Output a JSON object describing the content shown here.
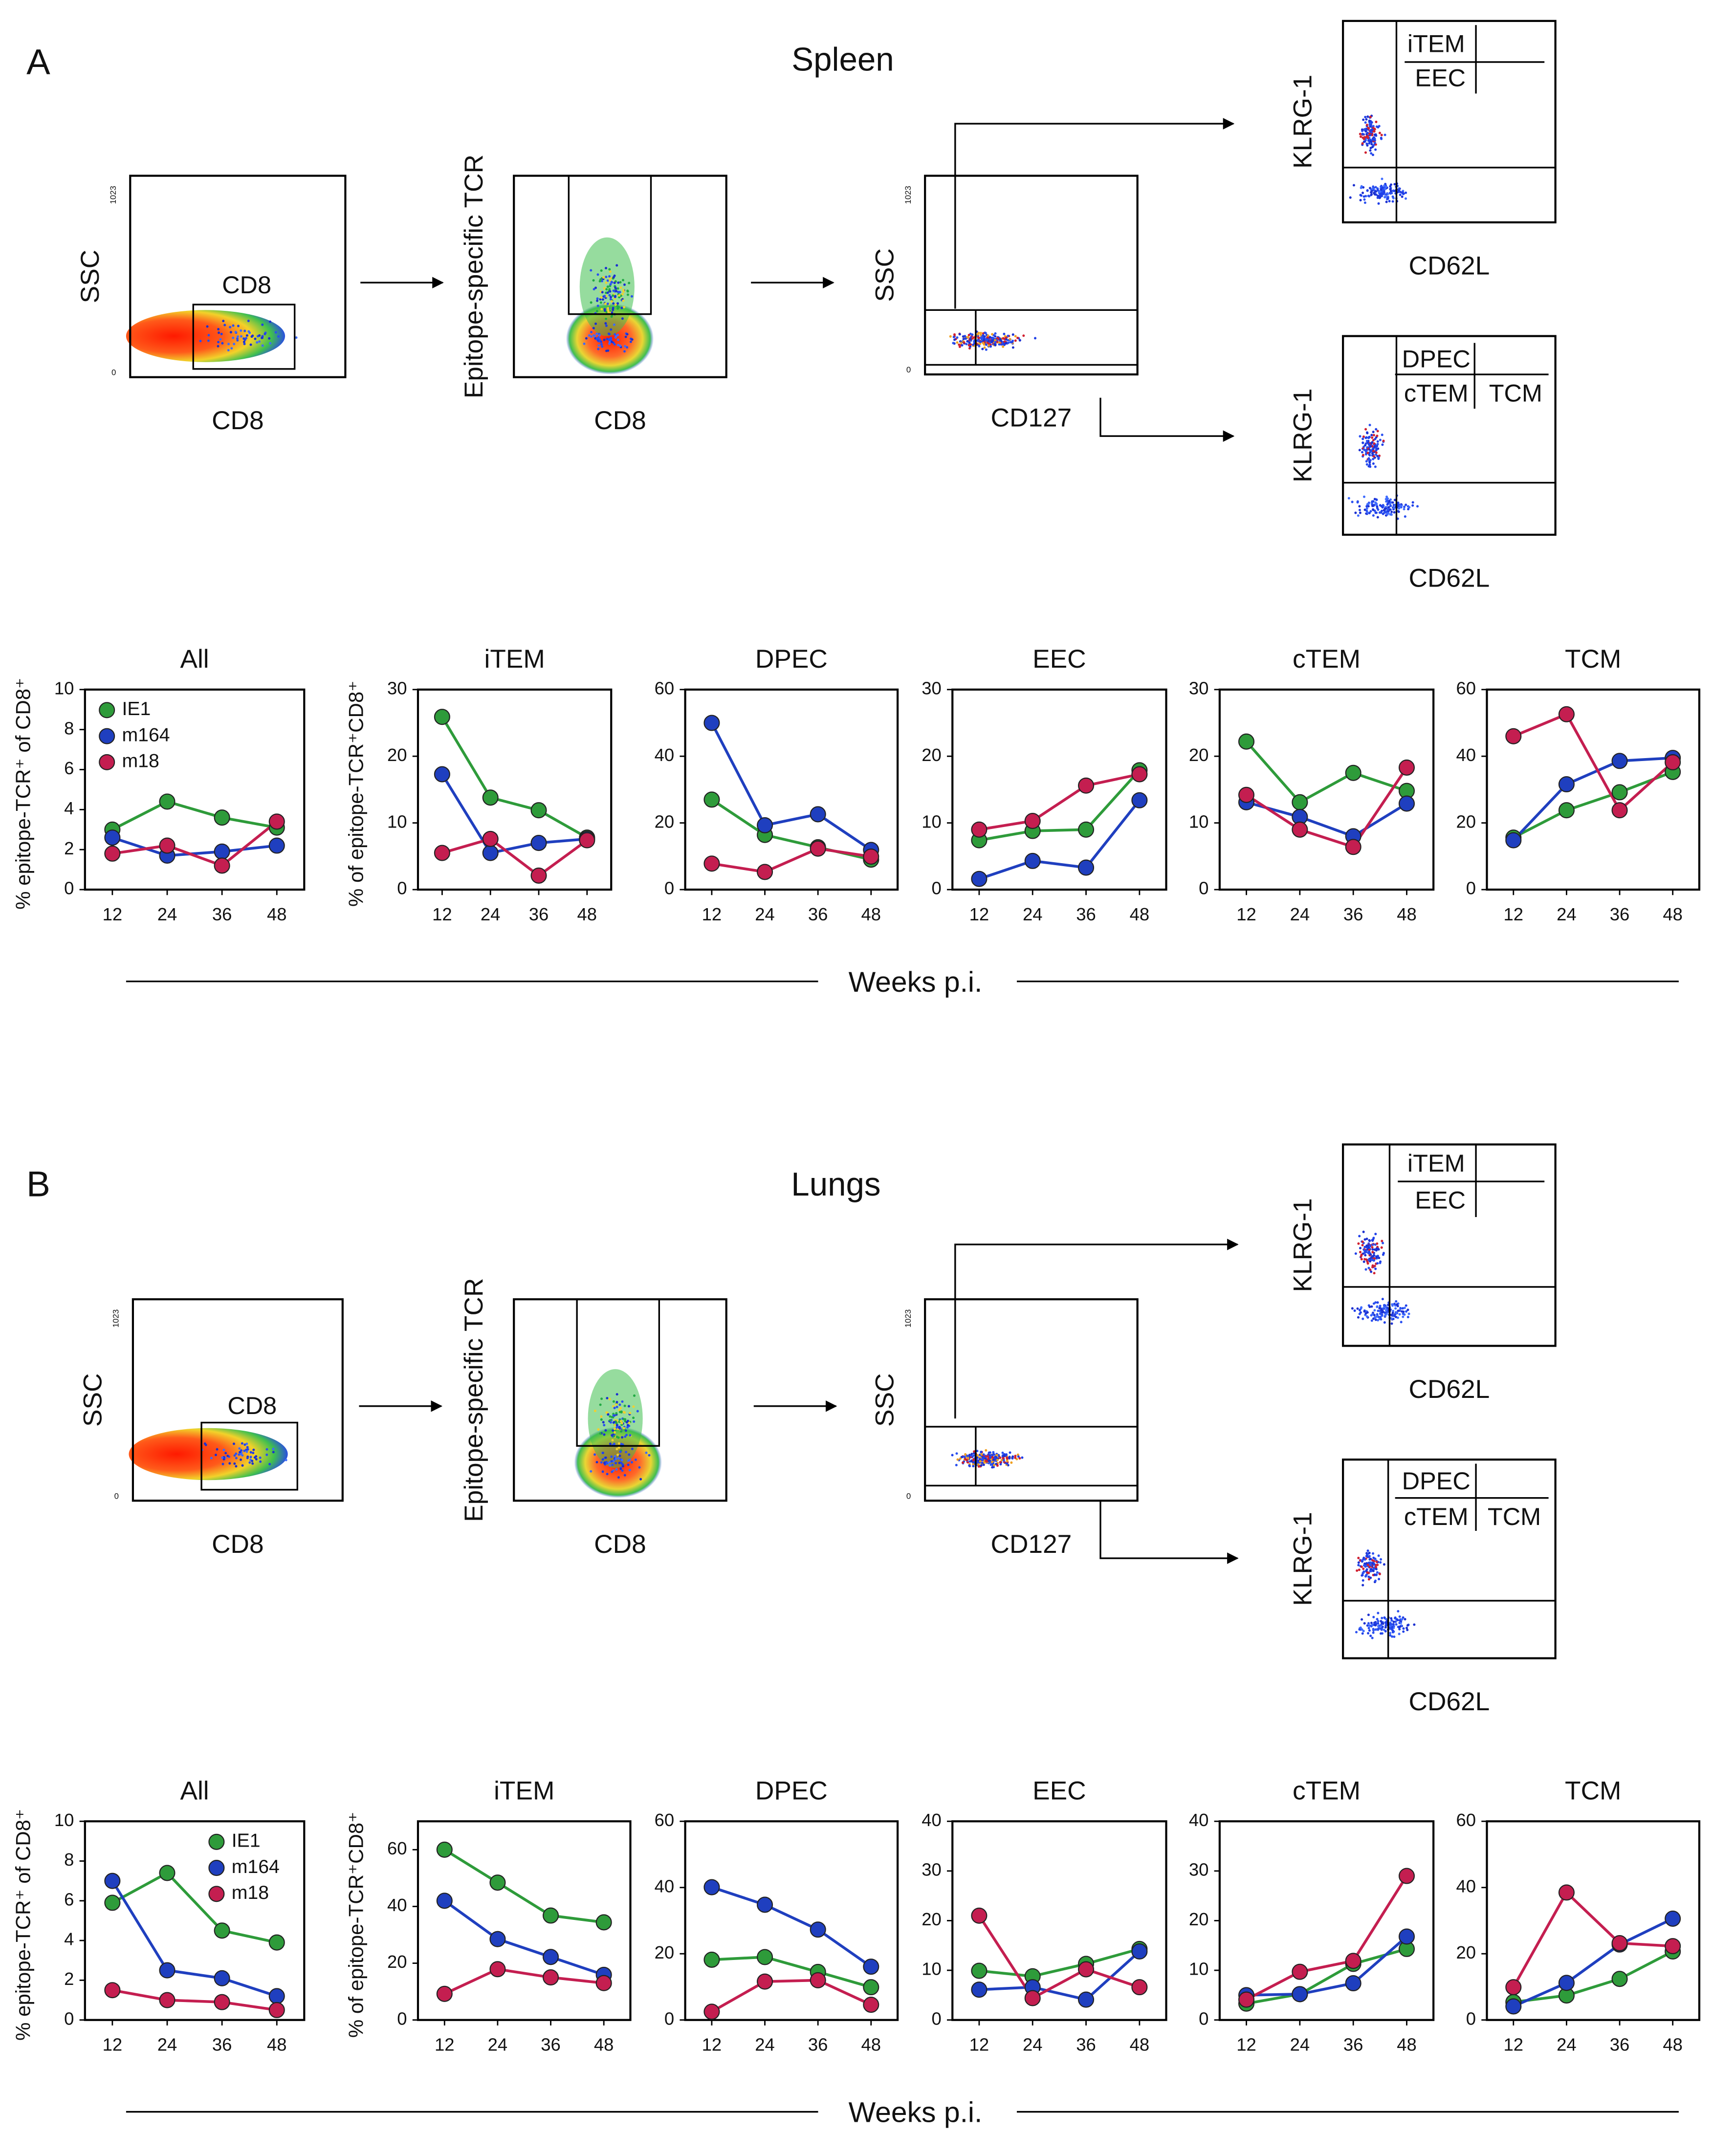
{
  "figure": {
    "sections": [
      {
        "letter": "A",
        "tissue": "Spleen",
        "xlabel": "Weeks p.i.",
        "plots": [
          {
            "ylabel": "SSC",
            "xlabel": "CD8",
            "gates": [
              "CD8"
            ],
            "ticks": [
              "1023",
              "0"
            ]
          },
          {
            "ylabel": "Epitope-specific TCR",
            "xlabel": "CD8"
          },
          {
            "ylabel": "SSC",
            "xlabel": "CD127",
            "ticks": [
              "1023",
              "0"
            ]
          },
          {
            "ylabel": "KLRG-1",
            "xlabel": "CD62L",
            "gates": [
              "iTEM",
              "EEC"
            ]
          },
          {
            "ylabel": "KLRG-1",
            "xlabel": "CD62L",
            "gates": [
              "DPEC",
              "cTEM",
              "TCM"
            ]
          }
        ]
      },
      {
        "letter": "B",
        "tissue": "Lungs",
        "xlabel": "Weeks p.i.",
        "plots": [
          {
            "ylabel": "SSC",
            "xlabel": "CD8",
            "gates": [
              "CD8"
            ],
            "ticks": [
              "1023",
              "0"
            ]
          },
          {
            "ylabel": "Epitope-specific TCR",
            "xlabel": "CD8"
          },
          {
            "ylabel": "SSC",
            "xlabel": "CD127",
            "ticks": [
              "1023",
              "0"
            ]
          },
          {
            "ylabel": "KLRG-1",
            "xlabel": "CD62L",
            "gates": [
              "iTEM",
              "EEC"
            ]
          },
          {
            "ylabel": "KLRG-1",
            "xlabel": "CD62L",
            "gates": [
              "DPEC",
              "cTEM",
              "TCM"
            ]
          }
        ]
      }
    ]
  },
  "chart_data": [
    {
      "type": "line",
      "title": "All",
      "ylabel": "% epitope-TCR⁺ of CD8⁺",
      "x": [
        12,
        24,
        36,
        48
      ],
      "xlim": [
        6,
        54
      ],
      "xticks": [
        12,
        24,
        36,
        48
      ],
      "ylim": [
        0,
        10
      ],
      "yticks": [
        0,
        2,
        4,
        6,
        8,
        10
      ],
      "legend": "upper left",
      "series": [
        {
          "name": "IE1",
          "color": "#2e9b3a",
          "values": [
            3.0,
            4.4,
            3.6,
            3.1
          ]
        },
        {
          "name": "m164",
          "color": "#1f3fbf",
          "values": [
            2.6,
            1.7,
            1.9,
            2.2
          ]
        },
        {
          "name": "m18",
          "color": "#c41e50",
          "values": [
            1.8,
            2.2,
            1.2,
            3.4
          ]
        }
      ]
    },
    {
      "type": "line",
      "title": "iTEM",
      "ylabel": "% of epitope-TCR⁺CD8⁺",
      "x": [
        12,
        24,
        36,
        48
      ],
      "xlim": [
        6,
        54
      ],
      "xticks": [
        12,
        24,
        36,
        48
      ],
      "ylim": [
        0,
        30
      ],
      "yticks": [
        0,
        10,
        20,
        30
      ],
      "series": [
        {
          "color": "#2e9b3a",
          "values": [
            25.9,
            13.8,
            11.9,
            7.8
          ]
        },
        {
          "color": "#1f3fbf",
          "values": [
            17.3,
            5.5,
            7.0,
            7.6
          ]
        },
        {
          "color": "#c41e50",
          "values": [
            5.5,
            7.6,
            2.1,
            7.4
          ]
        }
      ]
    },
    {
      "type": "line",
      "title": "DPEC",
      "x": [
        12,
        24,
        36,
        48
      ],
      "xlim": [
        6,
        54
      ],
      "xticks": [
        12,
        24,
        36,
        48
      ],
      "ylim": [
        0,
        60
      ],
      "yticks": [
        0,
        20,
        40,
        60
      ],
      "series": [
        {
          "color": "#2e9b3a",
          "values": [
            27,
            16.4,
            12.7,
            9
          ]
        },
        {
          "color": "#1f3fbf",
          "values": [
            50,
            19.3,
            22.6,
            11.9
          ]
        },
        {
          "color": "#c41e50",
          "values": [
            7.8,
            5.3,
            12.3,
            9.9
          ]
        }
      ]
    },
    {
      "type": "line",
      "title": "EEC",
      "x": [
        12,
        24,
        36,
        48
      ],
      "xlim": [
        6,
        54
      ],
      "xticks": [
        12,
        24,
        36,
        48
      ],
      "ylim": [
        0,
        30
      ],
      "yticks": [
        0,
        10,
        20,
        30
      ],
      "series": [
        {
          "color": "#2e9b3a",
          "values": [
            7.4,
            8.8,
            9.0,
            17.9
          ]
        },
        {
          "color": "#1f3fbf",
          "values": [
            1.6,
            4.3,
            3.3,
            13.4
          ]
        },
        {
          "color": "#c41e50",
          "values": [
            9.0,
            10.3,
            15.6,
            17.3
          ]
        }
      ]
    },
    {
      "type": "line",
      "title": "cTEM",
      "x": [
        12,
        24,
        36,
        48
      ],
      "xlim": [
        6,
        54
      ],
      "xticks": [
        12,
        24,
        36,
        48
      ],
      "ylim": [
        0,
        30
      ],
      "yticks": [
        0,
        10,
        20,
        30
      ],
      "series": [
        {
          "color": "#2e9b3a",
          "values": [
            22.2,
            13.1,
            17.5,
            14.8
          ]
        },
        {
          "color": "#1f3fbf",
          "values": [
            13.1,
            10.9,
            8.0,
            12.9
          ]
        },
        {
          "color": "#c41e50",
          "values": [
            14.2,
            9.0,
            6.4,
            18.3
          ]
        }
      ]
    },
    {
      "type": "line",
      "title": "TCM",
      "x": [
        12,
        24,
        36,
        48
      ],
      "xlim": [
        6,
        54
      ],
      "xticks": [
        12,
        24,
        36,
        48
      ],
      "ylim": [
        0,
        60
      ],
      "yticks": [
        0,
        20,
        40,
        60
      ],
      "series": [
        {
          "color": "#2e9b3a",
          "values": [
            15.6,
            23.8,
            29.2,
            35.3
          ]
        },
        {
          "color": "#1f3fbf",
          "values": [
            14.8,
            31.6,
            38.6,
            39.5
          ]
        },
        {
          "color": "#c41e50",
          "values": [
            46,
            52.6,
            23.8,
            38.2
          ]
        }
      ]
    },
    {
      "type": "line",
      "title": "All",
      "ylabel": "% epitope-TCR⁺ of CD8⁺",
      "x": [
        12,
        24,
        36,
        48
      ],
      "xlim": [
        6,
        54
      ],
      "xticks": [
        12,
        24,
        36,
        48
      ],
      "ylim": [
        0,
        10
      ],
      "yticks": [
        0,
        2,
        4,
        6,
        8,
        10
      ],
      "legend": "upper right",
      "series": [
        {
          "name": "IE1",
          "color": "#2e9b3a",
          "values": [
            5.9,
            7.4,
            4.5,
            3.9
          ]
        },
        {
          "name": "m164",
          "color": "#1f3fbf",
          "values": [
            7.0,
            2.5,
            2.1,
            1.2
          ]
        },
        {
          "name": "m18",
          "color": "#c41e50",
          "values": [
            1.5,
            1.0,
            0.9,
            0.5
          ]
        }
      ]
    },
    {
      "type": "line",
      "title": "iTEM",
      "ylabel": "% of epitope-TCR⁺CD8⁺",
      "x": [
        12,
        24,
        36,
        48
      ],
      "xlim": [
        6,
        54
      ],
      "xticks": [
        12,
        24,
        36,
        48
      ],
      "ylim": [
        0,
        70
      ],
      "yticks": [
        0,
        20,
        40,
        60
      ],
      "series": [
        {
          "color": "#2e9b3a",
          "values": [
            60,
            48.4,
            36.8,
            34.4
          ]
        },
        {
          "color": "#1f3fbf",
          "values": [
            42,
            28.5,
            22.2,
            15.9
          ]
        },
        {
          "color": "#c41e50",
          "values": [
            9.2,
            17.9,
            15,
            13
          ]
        }
      ]
    },
    {
      "type": "line",
      "title": "DPEC",
      "x": [
        12,
        24,
        36,
        48
      ],
      "xlim": [
        6,
        54
      ],
      "xticks": [
        12,
        24,
        36,
        48
      ],
      "ylim": [
        0,
        60
      ],
      "yticks": [
        0,
        20,
        40,
        60
      ],
      "series": [
        {
          "color": "#2e9b3a",
          "values": [
            18.2,
            19,
            14.5,
            9.9
          ]
        },
        {
          "color": "#1f3fbf",
          "values": [
            40.1,
            34.8,
            27.3,
            16.1
          ]
        },
        {
          "color": "#c41e50",
          "values": [
            2.5,
            11.6,
            12,
            4.6
          ]
        }
      ]
    },
    {
      "type": "line",
      "title": "EEC",
      "x": [
        12,
        24,
        36,
        48
      ],
      "xlim": [
        6,
        54
      ],
      "xticks": [
        12,
        24,
        36,
        48
      ],
      "ylim": [
        0,
        40
      ],
      "yticks": [
        0,
        10,
        20,
        30,
        40
      ],
      "series": [
        {
          "color": "#2e9b3a",
          "values": [
            9.9,
            8.8,
            11.3,
            14.3
          ]
        },
        {
          "color": "#1f3fbf",
          "values": [
            6.1,
            6.6,
            4.1,
            13.8
          ]
        },
        {
          "color": "#c41e50",
          "values": [
            21,
            4.4,
            10.2,
            6.6
          ]
        }
      ]
    },
    {
      "type": "line",
      "title": "cTEM",
      "x": [
        12,
        24,
        36,
        48
      ],
      "xlim": [
        6,
        54
      ],
      "xticks": [
        12,
        24,
        36,
        48
      ],
      "ylim": [
        0,
        40
      ],
      "yticks": [
        0,
        10,
        20,
        30,
        40
      ],
      "series": [
        {
          "color": "#2e9b3a",
          "values": [
            3.3,
            5.2,
            11.3,
            14.3
          ]
        },
        {
          "color": "#1f3fbf",
          "values": [
            5,
            5.2,
            7.4,
            16.8
          ]
        },
        {
          "color": "#c41e50",
          "values": [
            4.1,
            9.7,
            11.9,
            29
          ]
        }
      ]
    },
    {
      "type": "line",
      "title": "TCM",
      "x": [
        12,
        24,
        36,
        48
      ],
      "xlim": [
        6,
        54
      ],
      "xticks": [
        12,
        24,
        36,
        48
      ],
      "ylim": [
        0,
        60
      ],
      "yticks": [
        0,
        20,
        40,
        60
      ],
      "series": [
        {
          "color": "#2e9b3a",
          "values": [
            5.4,
            7.4,
            12.4,
            20.7
          ]
        },
        {
          "color": "#1f3fbf",
          "values": [
            4.1,
            11.2,
            22.8,
            30.6
          ]
        },
        {
          "color": "#c41e50",
          "values": [
            9.9,
            38.5,
            23.2,
            22.3
          ]
        }
      ]
    }
  ]
}
